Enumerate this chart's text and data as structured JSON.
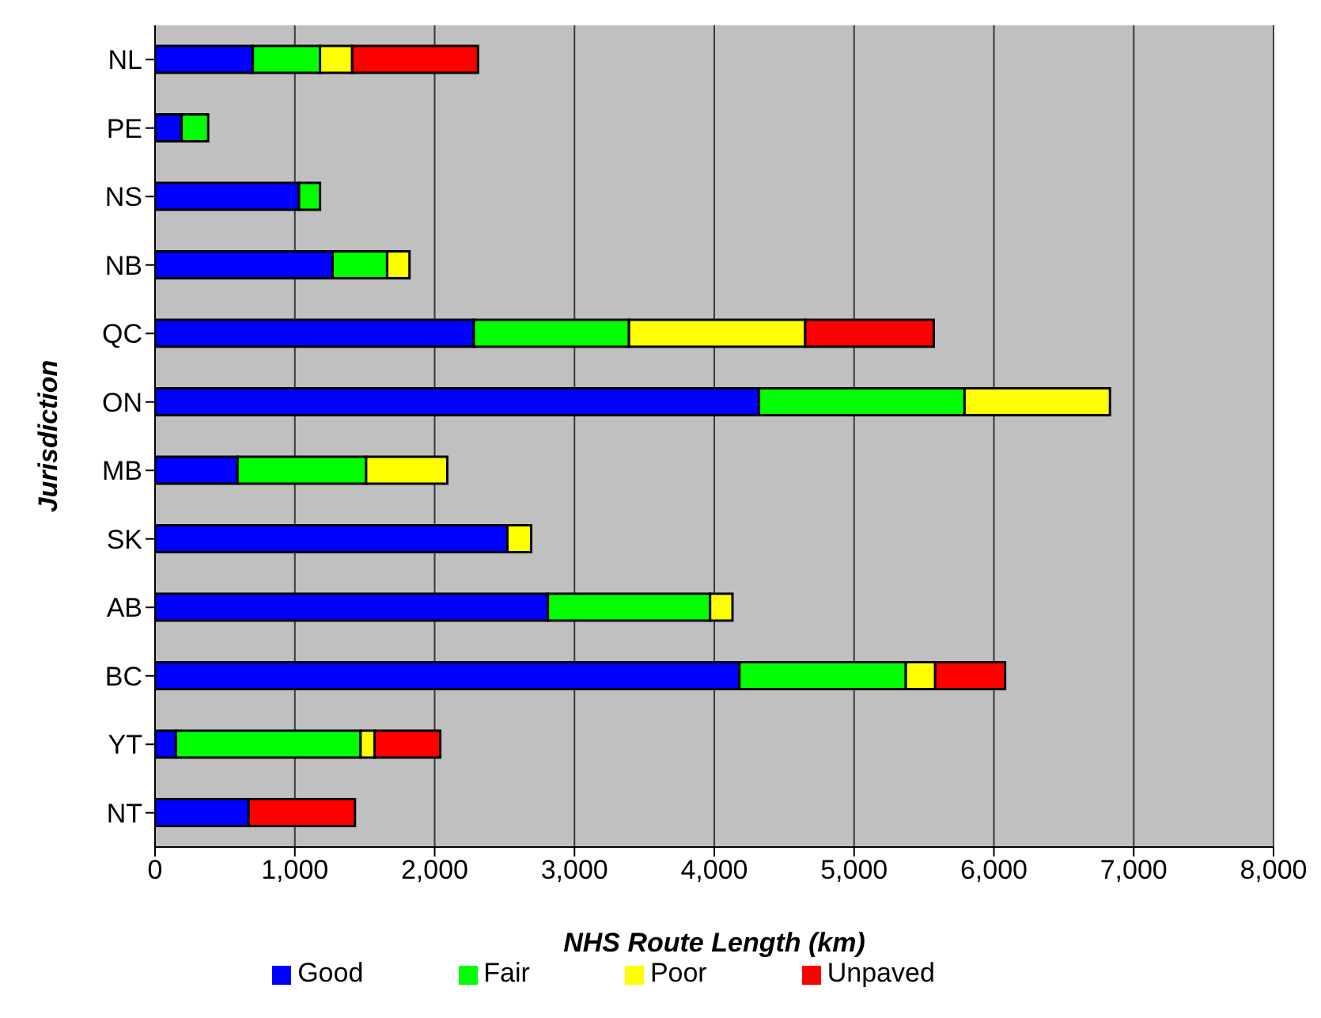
{
  "chart_data": {
    "type": "bar",
    "orientation": "horizontal",
    "stacked": true,
    "xlabel": "NHS Route Length (km)",
    "ylabel": "Jurisdiction",
    "categories": [
      "NL",
      "PE",
      "NS",
      "NB",
      "QC",
      "ON",
      "MB",
      "SK",
      "AB",
      "BC",
      "YT",
      "NT"
    ],
    "series": [
      {
        "name": "Good",
        "color": "#0000ff",
        "values": [
          700,
          190,
          1030,
          1270,
          2280,
          4320,
          590,
          2520,
          2810,
          4180,
          150,
          670
        ]
      },
      {
        "name": "Fair",
        "color": "#00ff00",
        "values": [
          480,
          190,
          150,
          390,
          1110,
          1470,
          920,
          null,
          1160,
          1190,
          1320,
          null
        ]
      },
      {
        "name": "Poor",
        "color": "#ffff00",
        "values": [
          230,
          null,
          null,
          160,
          1260,
          1040,
          580,
          170,
          160,
          210,
          100,
          null
        ]
      },
      {
        "name": "Unpaved",
        "color": "#ff0000",
        "values": [
          900,
          null,
          null,
          null,
          920,
          null,
          null,
          null,
          null,
          500,
          470,
          760
        ]
      }
    ],
    "xlim": [
      0,
      8000
    ],
    "xticks": [
      {
        "value": 0,
        "label": "0"
      },
      {
        "value": 1000,
        "label": "1,000"
      },
      {
        "value": 2000,
        "label": "2,000"
      },
      {
        "value": 3000,
        "label": "3,000"
      },
      {
        "value": 4000,
        "label": "4,000"
      },
      {
        "value": 5000,
        "label": "5,000"
      },
      {
        "value": 6000,
        "label": "6,000"
      },
      {
        "value": 7000,
        "label": "7,000"
      },
      {
        "value": 8000,
        "label": "8,000"
      }
    ],
    "grid": "x",
    "legend": "bottom"
  }
}
